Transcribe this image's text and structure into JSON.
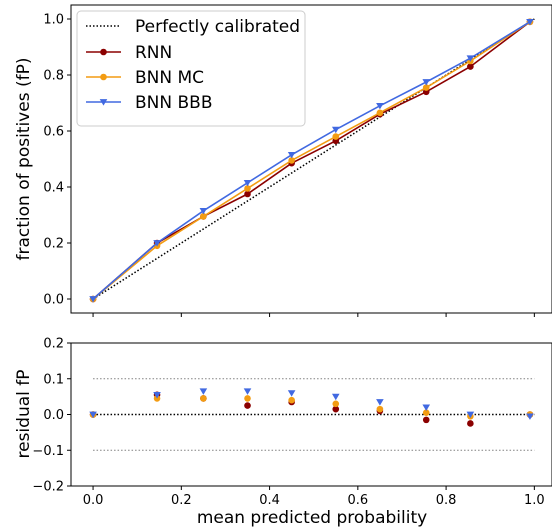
{
  "chart_data": [
    {
      "type": "line",
      "title": "",
      "xlabel": "",
      "ylabel": "fraction of positives (fP)",
      "xlim": [
        -0.05,
        1.04
      ],
      "ylim": [
        -0.05,
        1.05
      ],
      "yticks": [
        "0.0",
        "0.2",
        "0.4",
        "0.6",
        "0.8",
        "1.0"
      ],
      "legend_position": "top-left",
      "reference": {
        "name": "Perfectly calibrated",
        "color": "#000000",
        "style": "dotted",
        "x": [
          0,
          1
        ],
        "y": [
          0,
          1
        ]
      },
      "series": [
        {
          "name": "RNN",
          "color": "#8b0000",
          "marker": "circle",
          "x": [
            0.0,
            0.145,
            0.25,
            0.35,
            0.45,
            0.55,
            0.65,
            0.755,
            0.855,
            0.99
          ],
          "y": [
            0.0,
            0.2,
            0.295,
            0.375,
            0.485,
            0.565,
            0.66,
            0.74,
            0.83,
            0.99
          ]
        },
        {
          "name": "BNN MC",
          "color": "#f39c12",
          "marker": "circle",
          "x": [
            0.0,
            0.145,
            0.25,
            0.35,
            0.45,
            0.55,
            0.65,
            0.755,
            0.855,
            0.99
          ],
          "y": [
            0.0,
            0.19,
            0.295,
            0.395,
            0.495,
            0.58,
            0.665,
            0.755,
            0.85,
            0.99
          ]
        },
        {
          "name": "BNN BBB",
          "color": "#4169e1",
          "marker": "triangle-down",
          "x": [
            0.0,
            0.145,
            0.25,
            0.35,
            0.45,
            0.55,
            0.65,
            0.755,
            0.855,
            0.99
          ],
          "y": [
            0.0,
            0.2,
            0.315,
            0.415,
            0.515,
            0.605,
            0.69,
            0.775,
            0.86,
            0.99
          ]
        }
      ]
    },
    {
      "type": "scatter",
      "title": "",
      "xlabel": "mean predicted probability",
      "ylabel": "residual fP",
      "xlim": [
        -0.05,
        1.04
      ],
      "ylim": [
        -0.2,
        0.2
      ],
      "xticks": [
        "0.0",
        "0.2",
        "0.4",
        "0.6",
        "0.8",
        "1.0"
      ],
      "yticks": [
        "−0.2",
        "−0.1",
        "0.0",
        "0.1",
        "0.2"
      ],
      "reference_lines": [
        {
          "y": 0.0,
          "color": "#000000",
          "style": "dotted"
        },
        {
          "y": 0.1,
          "color": "#808080",
          "style": "dotted"
        },
        {
          "y": -0.1,
          "color": "#808080",
          "style": "dotted"
        }
      ],
      "series": [
        {
          "name": "RNN",
          "color": "#8b0000",
          "marker": "circle",
          "x": [
            0.0,
            0.145,
            0.25,
            0.35,
            0.45,
            0.55,
            0.65,
            0.755,
            0.855,
            0.99
          ],
          "y": [
            0.0,
            0.055,
            0.045,
            0.025,
            0.035,
            0.015,
            0.01,
            -0.015,
            -0.025,
            0.0
          ]
        },
        {
          "name": "BNN MC",
          "color": "#f39c12",
          "marker": "circle",
          "x": [
            0.0,
            0.145,
            0.25,
            0.35,
            0.45,
            0.55,
            0.65,
            0.755,
            0.855,
            0.99
          ],
          "y": [
            0.0,
            0.045,
            0.045,
            0.045,
            0.04,
            0.03,
            0.015,
            0.005,
            -0.005,
            0.0
          ]
        },
        {
          "name": "BNN BBB",
          "color": "#4169e1",
          "marker": "triangle-down",
          "x": [
            0.0,
            0.145,
            0.25,
            0.35,
            0.45,
            0.55,
            0.65,
            0.755,
            0.855,
            0.99
          ],
          "y": [
            0.0,
            0.055,
            0.065,
            0.065,
            0.06,
            0.05,
            0.035,
            0.02,
            0.0,
            -0.005
          ]
        }
      ]
    }
  ]
}
